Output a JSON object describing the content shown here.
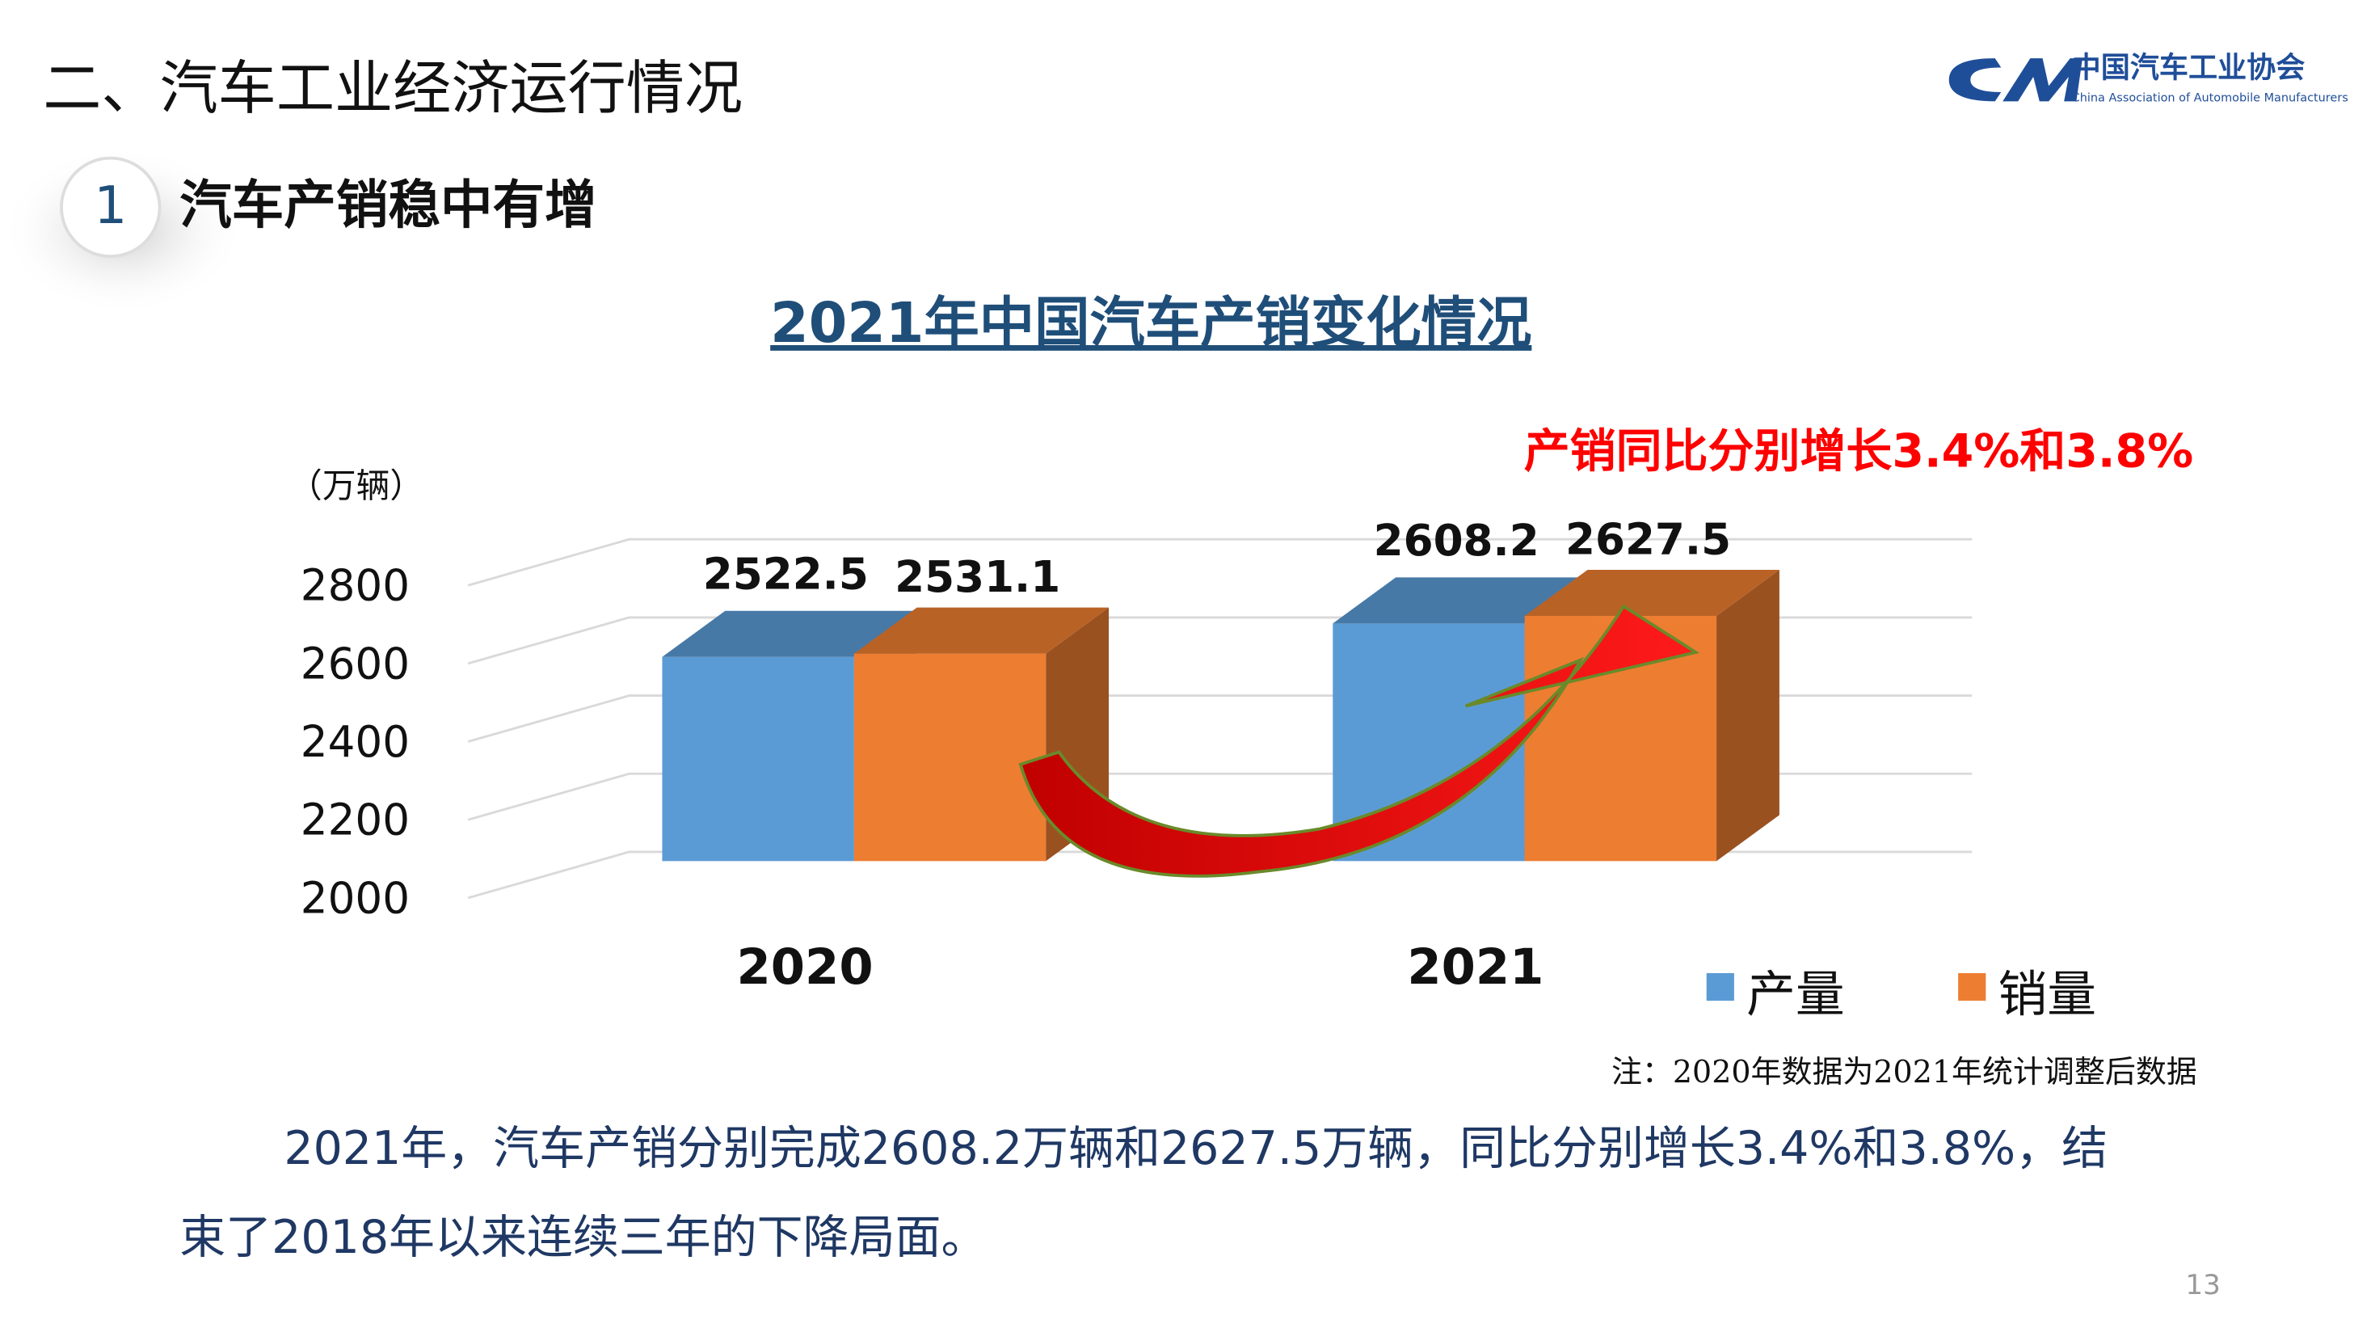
{
  "header": {
    "title": "二、汽车工业经济运行情况",
    "section_number": "1",
    "section_title": "汽车产销稳中有增",
    "logo_cn": "中国汽车工业协会",
    "logo_en": "China Association of Automobile Manufacturers"
  },
  "chart_data": {
    "type": "bar",
    "title": "2021年中国汽车产销变化情况",
    "y_label": "（万辆）",
    "annotation": "产销同比分别增长3.4%和3.8%",
    "categories": [
      "2020",
      "2021"
    ],
    "series": [
      {
        "name": "产量",
        "color": "#5b9bd5",
        "values": [
          2522.5,
          2608.2
        ]
      },
      {
        "name": "销量",
        "color": "#ed7d31",
        "values": [
          2531.1,
          2627.5
        ]
      }
    ],
    "ylim": [
      2000,
      2800
    ],
    "yticks": [
      2000,
      2200,
      2400,
      2600,
      2800
    ],
    "grid": true,
    "legend": "bottom-right"
  },
  "note": "注：2020年数据为2021年统计调整后数据",
  "body": [
    "2021年，汽车产销分别完成2608.2万辆和2627.5万辆，同比分别增长3.4%和3.8%，结",
    "束了2018年以来连续三年的下降局面。"
  ],
  "page_number": "13"
}
